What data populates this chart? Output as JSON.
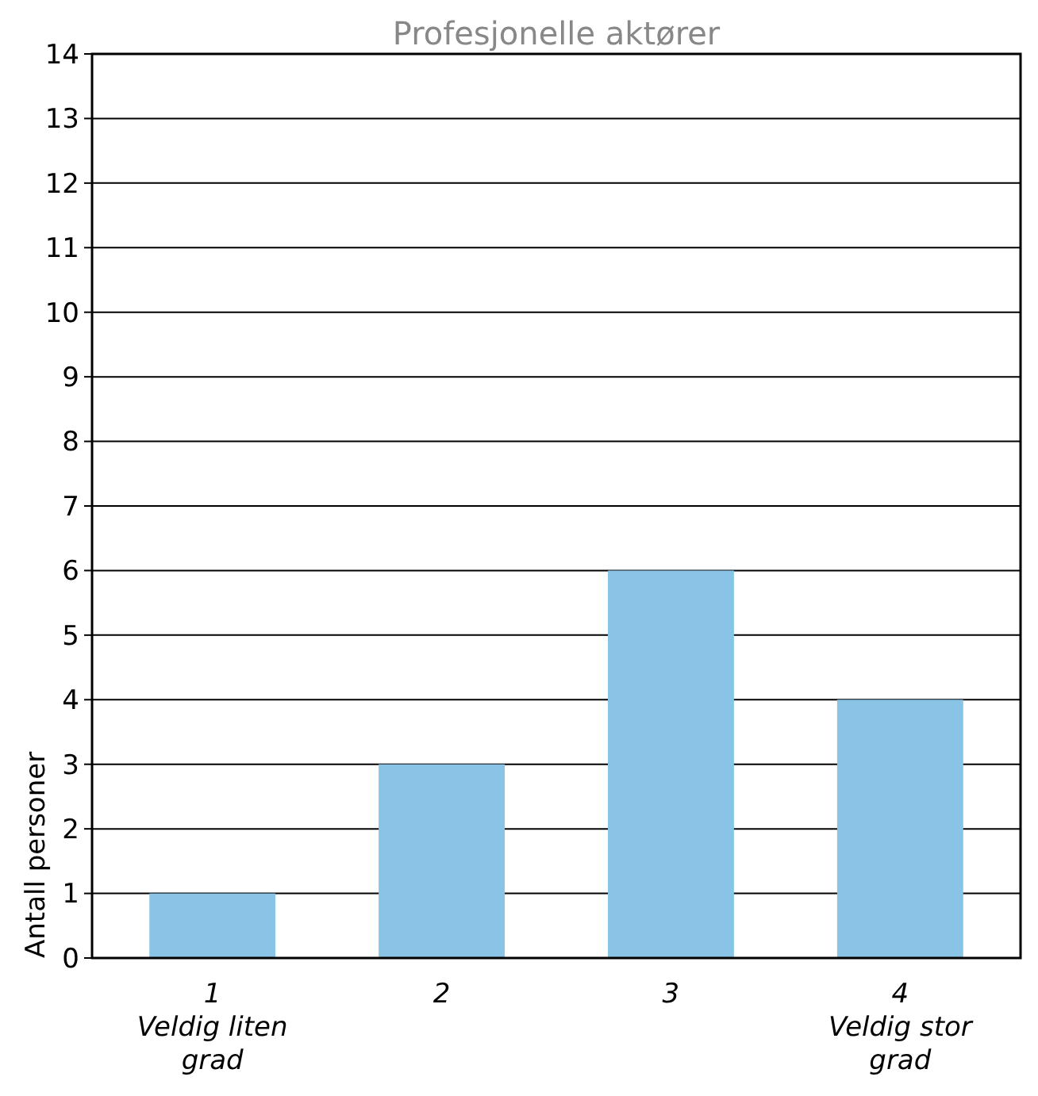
{
  "chart_data": {
    "type": "bar",
    "title": "Profesjonelle aktører",
    "ylabel": "Antall personer",
    "categories": [
      "1\nVeldig liten\ngrad",
      "2",
      "3",
      "4\nVeldig stor\ngrad"
    ],
    "values": [
      1,
      3,
      6,
      4
    ],
    "color": "#89c4e6",
    "ylim": [
      0,
      14
    ],
    "yticks": [
      0,
      1,
      2,
      3,
      4,
      5,
      6,
      7,
      8,
      9,
      10,
      11,
      12,
      13,
      14
    ],
    "grid": "y"
  }
}
